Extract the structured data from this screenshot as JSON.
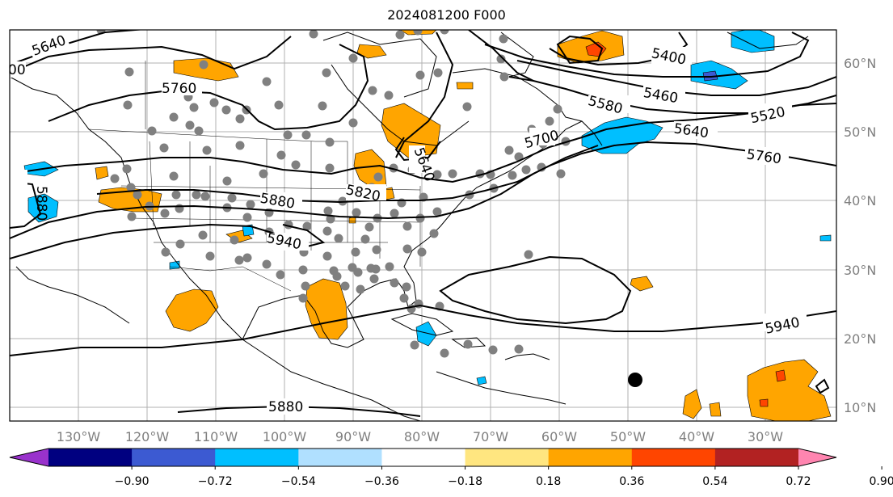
{
  "title": "2024081200 F000",
  "longitude_labels": [
    "130°W",
    "120°W",
    "110°W",
    "100°W",
    "90°W",
    "80°W",
    "70°W",
    "60°W",
    "50°W",
    "40°W",
    "30°W"
  ],
  "latitude_labels": [
    "60°N",
    "50°N",
    "40°N",
    "30°N",
    "20°N",
    "10°N"
  ],
  "colorbar": {
    "tick_labels": [
      "−0.90",
      "−0.72",
      "−0.54",
      "−0.36",
      "−0.18",
      "0.18",
      "0.36",
      "0.54",
      "0.72",
      "0.90"
    ],
    "colors": [
      "#9932cc",
      "#000080",
      "#3c5ad2",
      "#00bfff",
      "#b0e0ff",
      "#ffffff",
      "#ffe680",
      "#ffa500",
      "#ff4500",
      "#b22222",
      "#ff85b0"
    ]
  },
  "contour_labels": [
    "5640",
    "5760",
    "5400",
    "5460",
    "5520",
    "5580",
    "5640",
    "5700",
    "5760",
    "5820",
    "5880",
    "5940",
    "5940",
    "5880",
    "5880",
    "5640",
    "00"
  ],
  "colors": {
    "positive_fill": "#ffa500",
    "strong_positive_fill": "#ff4500",
    "negative_fill": "#00bfff",
    "strong_negative_fill": "#3c5ad2",
    "station_dot": "#808080",
    "grid": "#b0b0b0"
  }
}
